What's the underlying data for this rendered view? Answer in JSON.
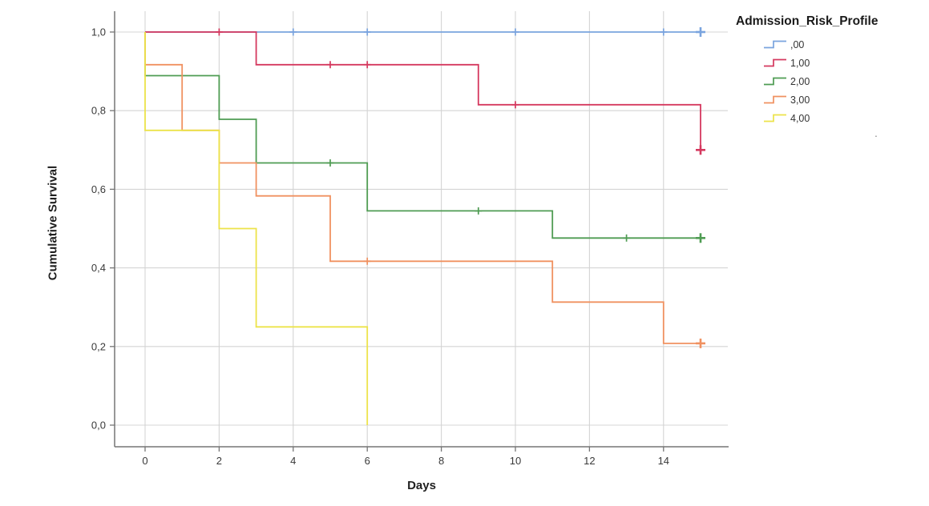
{
  "figure": {
    "stray_mark": "."
  },
  "chart_data": {
    "type": "line",
    "subtype": "kaplan-meier-step",
    "title": "",
    "xlabel": "Days",
    "ylabel": "Cumulative Survival",
    "legend_title": "Admission_Risk_Profile",
    "legend_position": "top-right",
    "grid": true,
    "xlim": [
      -0.82,
      15.75
    ],
    "ylim": [
      -0.055,
      1.053
    ],
    "x_ticks": [
      0,
      2,
      4,
      6,
      8,
      10,
      12,
      14
    ],
    "x_tick_labels": [
      "0",
      "2",
      "4",
      "6",
      "8",
      "10",
      "12",
      "14"
    ],
    "y_tick_values": [
      0.0,
      0.2,
      0.4,
      0.6,
      0.8,
      1.0
    ],
    "y_tick_labels": [
      "0,0",
      "0,2",
      "0,4",
      "0,6",
      "0,8",
      "1,0"
    ],
    "colors": {
      "gridline": "#d4d4d4",
      "axis": "#757575",
      "tick_label": "#3a3a3a"
    },
    "series": [
      {
        "name": ",00",
        "color": "#7aa4de",
        "points": [
          [
            0,
            1.0
          ],
          [
            15,
            1.0
          ]
        ],
        "censored": [
          [
            4,
            1.0
          ],
          [
            6,
            1.0
          ],
          [
            10,
            1.0
          ],
          [
            14,
            1.0
          ]
        ],
        "terminal_censored": [
          [
            15,
            1.0
          ]
        ]
      },
      {
        "name": "1,00",
        "color": "#d5395f",
        "points": [
          [
            0,
            1.0
          ],
          [
            3,
            1.0
          ],
          [
            3,
            0.917
          ],
          [
            9,
            0.917
          ],
          [
            9,
            0.815
          ],
          [
            15,
            0.815
          ],
          [
            15,
            0.7
          ]
        ],
        "censored": [
          [
            2,
            1.0
          ],
          [
            5,
            0.917
          ],
          [
            6,
            0.917
          ],
          [
            10,
            0.815
          ]
        ],
        "terminal_censored": [
          [
            15,
            0.7
          ]
        ]
      },
      {
        "name": "2,00",
        "color": "#4f9c53",
        "points": [
          [
            0,
            1.0
          ],
          [
            0,
            0.889
          ],
          [
            2,
            0.889
          ],
          [
            2,
            0.778
          ],
          [
            3,
            0.778
          ],
          [
            3,
            0.667
          ],
          [
            6,
            0.667
          ],
          [
            6,
            0.545
          ],
          [
            11,
            0.545
          ],
          [
            11,
            0.476
          ],
          [
            15,
            0.476
          ]
        ],
        "censored": [
          [
            5,
            0.667
          ],
          [
            9,
            0.545
          ],
          [
            13,
            0.476
          ]
        ],
        "terminal_censored": [
          [
            15,
            0.476
          ]
        ]
      },
      {
        "name": "3,00",
        "color": "#f09160",
        "points": [
          [
            0,
            1.0
          ],
          [
            0,
            0.917
          ],
          [
            1,
            0.917
          ],
          [
            1,
            0.75
          ],
          [
            2,
            0.75
          ],
          [
            2,
            0.667
          ],
          [
            3,
            0.667
          ],
          [
            3,
            0.583
          ],
          [
            5,
            0.583
          ],
          [
            5,
            0.417
          ],
          [
            11,
            0.417
          ],
          [
            11,
            0.313
          ],
          [
            14,
            0.313
          ],
          [
            14,
            0.208
          ],
          [
            15,
            0.208
          ]
        ],
        "censored": [
          [
            6,
            0.417
          ]
        ],
        "terminal_censored": [
          [
            15,
            0.208
          ]
        ]
      },
      {
        "name": "4,00",
        "color": "#ece34a",
        "points": [
          [
            0,
            1.0
          ],
          [
            0,
            0.75
          ],
          [
            2,
            0.75
          ],
          [
            2,
            0.5
          ],
          [
            3,
            0.5
          ],
          [
            3,
            0.25
          ],
          [
            6,
            0.25
          ],
          [
            6,
            0.0
          ]
        ],
        "censored": [],
        "terminal_censored": []
      }
    ]
  }
}
